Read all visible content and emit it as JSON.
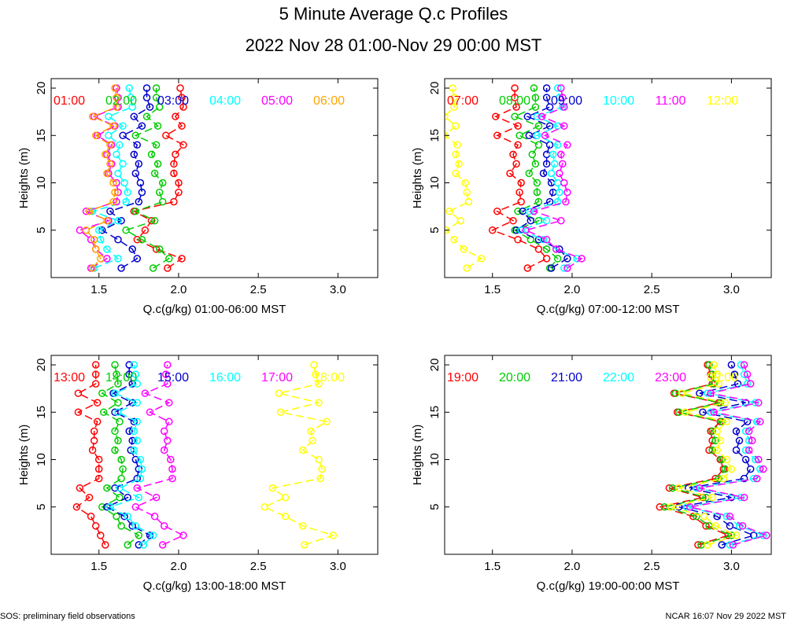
{
  "figure": {
    "title": "5 Minute Average Q.c Profiles",
    "subtitle": "2022 Nov 28 01:00-Nov 29 00:00 MST",
    "footer_left": "SOS: preliminary field observations",
    "footer_right": "NCAR 16:07 Nov 29 2022 MST"
  },
  "colors": {
    "red": "#ff0000",
    "green": "#00cc00",
    "blue": "#0000cc",
    "cyan": "#00ffff",
    "magenta": "#ff00ff",
    "yellow": "#ffff00",
    "orange": "#ffa500"
  },
  "chart_data": [
    {
      "type": "line",
      "xlabel": "Q.c(g/kg) 01:00-06:00 MST",
      "ylabel": "Heights (m)",
      "xlim": [
        1.2,
        3.25
      ],
      "ylim": [
        0,
        21
      ],
      "xticks": [
        "1.5",
        "2.0",
        "2.5",
        "3.0"
      ],
      "xtick_values": [
        1.5,
        2.0,
        2.5,
        3.0
      ],
      "yticks": [
        "5",
        "10",
        "15",
        "20"
      ],
      "ytick_values": [
        5,
        10,
        15,
        20
      ],
      "heights": [
        1,
        2,
        3,
        4,
        5,
        6,
        7,
        8,
        9,
        10,
        11,
        12,
        13,
        14,
        15,
        16,
        17,
        18,
        19,
        20
      ],
      "series": [
        {
          "name": "01:00",
          "color": "red",
          "values": [
            1.93,
            2.02,
            1.86,
            1.74,
            1.79,
            1.83,
            1.72,
            1.97,
            2.0,
            2.0,
            1.97,
            1.97,
            1.98,
            2.03,
            1.92,
            2.02,
            1.98,
            2.03,
            2.02,
            2.01
          ]
        },
        {
          "name": "02:00",
          "color": "green",
          "values": [
            1.84,
            1.94,
            1.88,
            1.77,
            1.67,
            1.85,
            1.73,
            1.9,
            1.88,
            1.9,
            1.85,
            1.87,
            1.83,
            1.86,
            1.73,
            1.87,
            1.8,
            1.88,
            1.86,
            1.86
          ]
        },
        {
          "name": "03:00",
          "color": "blue",
          "values": [
            1.64,
            1.74,
            1.71,
            1.62,
            1.52,
            1.64,
            1.57,
            1.75,
            1.77,
            1.76,
            1.73,
            1.75,
            1.72,
            1.74,
            1.65,
            1.77,
            1.72,
            1.82,
            1.8,
            1.8
          ]
        },
        {
          "name": "04:00",
          "color": "cyan",
          "values": [
            1.47,
            1.62,
            1.55,
            1.51,
            1.5,
            1.62,
            1.46,
            1.67,
            1.68,
            1.66,
            1.62,
            1.65,
            1.61,
            1.63,
            1.56,
            1.65,
            1.56,
            1.71,
            1.7,
            1.69
          ]
        },
        {
          "name": "05:00",
          "color": "magenta",
          "values": [
            1.45,
            1.55,
            1.48,
            1.45,
            1.38,
            1.56,
            1.42,
            1.61,
            1.62,
            1.61,
            1.56,
            1.58,
            1.55,
            1.58,
            1.49,
            1.6,
            1.47,
            1.62,
            1.62,
            1.61
          ]
        },
        {
          "name": "06:00",
          "color": "orange",
          "values": [
            1.46,
            1.51,
            1.48,
            1.47,
            1.42,
            1.55,
            1.44,
            1.59,
            1.6,
            1.59,
            1.55,
            1.57,
            1.54,
            1.57,
            1.48,
            1.59,
            1.46,
            1.61,
            1.61,
            1.6
          ]
        }
      ]
    },
    {
      "type": "line",
      "xlabel": "Q.c(g/kg) 07:00-12:00 MST",
      "ylabel": "Heights (m)",
      "xlim": [
        1.2,
        3.25
      ],
      "ylim": [
        0,
        21
      ],
      "xticks": [
        "1.5",
        "2.0",
        "2.5",
        "3.0"
      ],
      "xtick_values": [
        1.5,
        2.0,
        2.5,
        3.0
      ],
      "yticks": [
        "5",
        "10",
        "15",
        "20"
      ],
      "ytick_values": [
        5,
        10,
        15,
        20
      ],
      "heights": [
        1,
        2,
        3,
        4,
        5,
        6,
        7,
        8,
        9,
        10,
        11,
        12,
        13,
        14,
        15,
        16,
        17,
        18,
        19,
        20
      ],
      "series": [
        {
          "name": "07:00",
          "color": "red",
          "values": [
            1.72,
            1.84,
            1.79,
            1.66,
            1.5,
            1.63,
            1.53,
            1.68,
            1.67,
            1.68,
            1.61,
            1.65,
            1.63,
            1.66,
            1.53,
            1.66,
            1.52,
            1.65,
            1.64,
            1.64
          ]
        },
        {
          "name": "08:00",
          "color": "green",
          "values": [
            1.86,
            1.91,
            1.84,
            1.74,
            1.64,
            1.79,
            1.66,
            1.79,
            1.78,
            1.78,
            1.73,
            1.77,
            1.75,
            1.79,
            1.67,
            1.79,
            1.64,
            1.77,
            1.77,
            1.76
          ]
        },
        {
          "name": "09:00",
          "color": "blue",
          "values": [
            1.87,
            1.97,
            1.92,
            1.79,
            1.65,
            1.74,
            1.69,
            1.86,
            1.88,
            1.87,
            1.82,
            1.84,
            1.84,
            1.86,
            1.73,
            1.86,
            1.72,
            1.86,
            1.84,
            1.84
          ]
        },
        {
          "name": "10:00",
          "color": "cyan",
          "values": [
            1.95,
            2.03,
            1.9,
            1.82,
            1.68,
            1.84,
            1.73,
            1.91,
            1.92,
            1.91,
            1.87,
            1.89,
            1.88,
            1.91,
            1.78,
            1.91,
            1.78,
            1.94,
            1.92,
            1.91
          ]
        },
        {
          "name": "11:00",
          "color": "magenta",
          "values": [
            1.97,
            2.06,
            1.9,
            1.84,
            1.71,
            1.93,
            1.76,
            1.96,
            1.97,
            1.95,
            1.92,
            1.94,
            1.93,
            1.97,
            1.83,
            1.95,
            1.81,
            1.95,
            1.94,
            1.93
          ]
        },
        {
          "name": "12:00",
          "color": "yellow",
          "values": [
            1.34,
            1.43,
            1.32,
            1.26,
            1.21,
            1.3,
            1.23,
            1.35,
            1.34,
            1.33,
            1.27,
            1.29,
            1.27,
            1.28,
            1.2,
            1.27,
            1.2,
            1.26,
            1.26,
            1.25
          ]
        }
      ]
    },
    {
      "type": "line",
      "xlabel": "Q.c(g/kg) 13:00-18:00 MST",
      "ylabel": "Heights (m)",
      "xlim": [
        1.2,
        3.25
      ],
      "ylim": [
        0,
        21
      ],
      "xticks": [
        "1.5",
        "2.0",
        "2.5",
        "3.0"
      ],
      "xtick_values": [
        1.5,
        2.0,
        2.5,
        3.0
      ],
      "yticks": [
        "5",
        "10",
        "15",
        "20"
      ],
      "ytick_values": [
        5,
        10,
        15,
        20
      ],
      "heights": [
        1,
        2,
        3,
        4,
        5,
        6,
        7,
        8,
        9,
        10,
        11,
        12,
        13,
        14,
        15,
        16,
        17,
        18,
        19,
        20
      ],
      "series": [
        {
          "name": "13:00",
          "color": "red",
          "values": [
            1.54,
            1.51,
            1.48,
            1.45,
            1.36,
            1.44,
            1.38,
            1.5,
            1.5,
            1.5,
            1.46,
            1.47,
            1.47,
            1.49,
            1.37,
            1.49,
            1.37,
            1.48,
            1.48,
            1.48
          ]
        },
        {
          "name": "14:00",
          "color": "green",
          "values": [
            1.68,
            1.75,
            1.64,
            1.61,
            1.52,
            1.63,
            1.55,
            1.64,
            1.65,
            1.64,
            1.6,
            1.62,
            1.6,
            1.63,
            1.53,
            1.62,
            1.52,
            1.62,
            1.61,
            1.6
          ]
        },
        {
          "name": "15:00",
          "color": "blue",
          "values": [
            1.75,
            1.82,
            1.71,
            1.66,
            1.55,
            1.68,
            1.6,
            1.74,
            1.75,
            1.73,
            1.7,
            1.71,
            1.69,
            1.72,
            1.6,
            1.71,
            1.59,
            1.71,
            1.69,
            1.69
          ]
        },
        {
          "name": "16:00",
          "color": "cyan",
          "values": [
            1.78,
            1.84,
            1.73,
            1.68,
            1.57,
            1.75,
            1.63,
            1.76,
            1.77,
            1.76,
            1.72,
            1.74,
            1.72,
            1.74,
            1.62,
            1.74,
            1.6,
            1.74,
            1.73,
            1.72
          ]
        },
        {
          "name": "17:00",
          "color": "magenta",
          "values": [
            1.9,
            2.03,
            1.91,
            1.85,
            1.73,
            1.86,
            1.74,
            1.96,
            1.96,
            1.95,
            1.91,
            1.93,
            1.91,
            1.94,
            1.82,
            1.94,
            1.79,
            1.93,
            1.92,
            1.93
          ]
        },
        {
          "name": "18:00",
          "color": "yellow",
          "values": [
            2.79,
            2.97,
            2.78,
            2.67,
            2.54,
            2.67,
            2.59,
            2.89,
            2.9,
            2.88,
            2.78,
            2.84,
            2.83,
            2.93,
            2.64,
            2.88,
            2.63,
            2.88,
            2.86,
            2.85
          ]
        }
      ]
    },
    {
      "type": "line",
      "xlabel": "Q.c(g/kg) 19:00-00:00 MST",
      "ylabel": "Heights (m)",
      "xlim": [
        1.2,
        3.25
      ],
      "ylim": [
        0,
        21
      ],
      "xticks": [
        "1.5",
        "2.0",
        "2.5",
        "3.0"
      ],
      "xtick_values": [
        1.5,
        2.0,
        2.5,
        3.0
      ],
      "yticks": [
        "5",
        "10",
        "15",
        "20"
      ],
      "ytick_values": [
        5,
        10,
        15,
        20
      ],
      "heights": [
        1,
        2,
        3,
        4,
        5,
        6,
        7,
        8,
        9,
        10,
        11,
        12,
        13,
        14,
        15,
        16,
        17,
        18,
        19,
        20
      ],
      "series": [
        {
          "name": "19:00",
          "color": "red",
          "values": [
            2.79,
            2.98,
            2.84,
            2.76,
            2.55,
            2.82,
            2.61,
            2.9,
            2.95,
            2.93,
            2.86,
            2.88,
            2.87,
            2.93,
            2.66,
            2.92,
            2.64,
            2.88,
            2.87,
            2.85
          ]
        },
        {
          "name": "20:00",
          "color": "green",
          "values": [
            2.81,
            3.0,
            2.86,
            2.78,
            2.58,
            2.84,
            2.63,
            2.92,
            2.96,
            2.94,
            2.88,
            2.9,
            2.88,
            2.94,
            2.67,
            2.93,
            2.65,
            2.89,
            2.88,
            2.86
          ]
        },
        {
          "name": "21:00",
          "color": "blue",
          "values": [
            2.94,
            3.14,
            2.99,
            2.91,
            2.67,
            3.0,
            2.73,
            3.08,
            3.12,
            3.09,
            3.03,
            3.05,
            3.03,
            3.1,
            2.82,
            3.09,
            2.8,
            3.04,
            3.02,
            3.0
          ]
        },
        {
          "name": "22:00",
          "color": "cyan",
          "values": [
            2.99,
            3.2,
            3.05,
            2.97,
            2.72,
            3.06,
            2.78,
            3.14,
            3.18,
            3.15,
            3.09,
            3.11,
            3.09,
            3.16,
            2.87,
            3.15,
            2.85,
            3.1,
            3.08,
            3.06
          ]
        },
        {
          "name": "23:00",
          "color": "magenta",
          "values": [
            3.01,
            3.22,
            3.07,
            2.99,
            2.74,
            3.08,
            2.8,
            3.16,
            3.2,
            3.17,
            3.11,
            3.13,
            3.11,
            3.18,
            2.89,
            3.17,
            2.87,
            3.12,
            3.1,
            3.08
          ]
        },
        {
          "name": "00:00",
          "color": "yellow",
          "values": [
            2.85,
            3.03,
            2.9,
            2.83,
            2.62,
            2.88,
            2.67,
            2.95,
            3.0,
            2.97,
            2.91,
            2.93,
            2.91,
            2.97,
            2.71,
            2.96,
            2.69,
            2.92,
            2.91,
            2.89
          ]
        }
      ]
    }
  ]
}
